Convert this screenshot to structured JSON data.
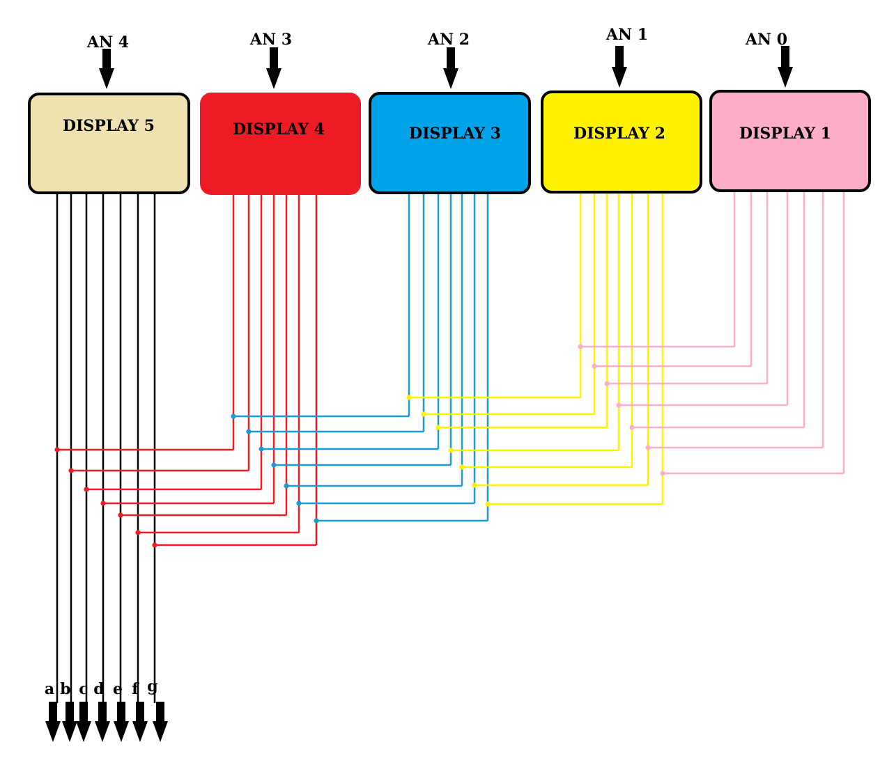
{
  "displays": [
    {
      "label": "DISPLAY 5",
      "anode": "AN 4",
      "fill": "#efe2b0",
      "border": "#000000",
      "wire": "#000000"
    },
    {
      "label": "DISPLAY 4",
      "anode": "AN 3",
      "fill": "#ed1c24",
      "border": "#ed1c24",
      "wire": "#ed1c24"
    },
    {
      "label": "DISPLAY 3",
      "anode": "AN 2",
      "fill": "#00a2e8",
      "border": "#000000",
      "wire": "#1a9ad6"
    },
    {
      "label": "DISPLAY 2",
      "anode": "AN 1",
      "fill": "#fff200",
      "border": "#000000",
      "wire": "#fff200"
    },
    {
      "label": "DISPLAY 1",
      "anode": "AN 0",
      "fill": "#ffaec9",
      "border": "#000000",
      "wire": "#ffaec9"
    }
  ],
  "segments": [
    "a",
    "b",
    "c",
    "d",
    "e",
    "f",
    "g"
  ]
}
